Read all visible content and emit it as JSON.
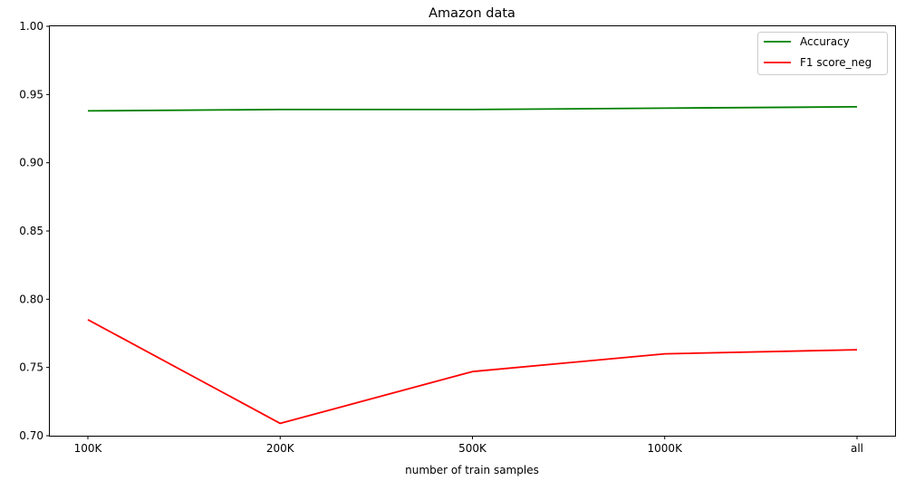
{
  "chart_data": {
    "type": "line",
    "title": "Amazon data",
    "xlabel": "number of train samples",
    "ylabel": "",
    "categories": [
      "100K",
      "200K",
      "500K",
      "1000K",
      "all"
    ],
    "ylim": [
      0.7,
      1.0
    ],
    "yticks": [
      "0.70",
      "0.75",
      "0.80",
      "0.85",
      "0.90",
      "0.95",
      "1.00"
    ],
    "grid": false,
    "legend_position": "top-right",
    "series": [
      {
        "name": "Accuracy",
        "color": "#008000",
        "values": [
          0.938,
          0.939,
          0.939,
          0.94,
          0.941
        ]
      },
      {
        "name": "F1 score_neg",
        "color": "#ff0000",
        "values": [
          0.785,
          0.709,
          0.747,
          0.76,
          0.763
        ]
      }
    ]
  }
}
